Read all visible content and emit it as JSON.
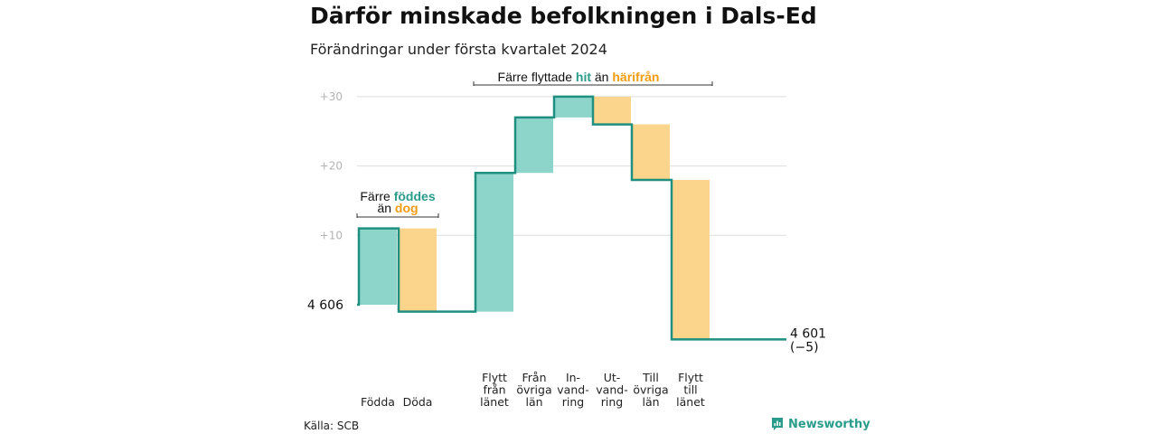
{
  "title": "Därför minskade befolkningen i Dals-Ed",
  "subtitle": "Förändringar under första kvartalet 2024",
  "source": "Källa: SCB",
  "brand": "Newsworthy",
  "colors": {
    "increase": "#8dd5cb",
    "decrease": "#fbd58c",
    "line": "#1f8f7f",
    "grid": "#dddddd",
    "teal_text": "#2a9c8b",
    "orange_text": "#f39c12"
  },
  "annotations": {
    "births_deaths": {
      "prefix": "Färre",
      "highlight1": "föddes",
      "middle": "än",
      "highlight2": "dog"
    },
    "migration": {
      "prefix": "Färre flyttade",
      "highlight1": "hit",
      "middle": "än",
      "highlight2": "härifrån"
    }
  },
  "chart_data": {
    "type": "waterfall",
    "start_label": "4 606",
    "end_label": "4 601",
    "end_change_label": "(−5)",
    "start_value": 4606,
    "end_value": 4601,
    "y_ticks": [
      "+10",
      "+20",
      "+30"
    ],
    "y_tick_values": [
      10,
      20,
      30
    ],
    "ylim": [
      -6,
      33
    ],
    "steps": [
      {
        "label": "Födda",
        "change": 11
      },
      {
        "label": "Döda",
        "change": -12
      },
      {
        "label": "Flytt från länet",
        "change": 20
      },
      {
        "label": "Från övriga län",
        "change": 8
      },
      {
        "label": "In- vand- ring",
        "change": 3
      },
      {
        "label": "Ut- vand- ring",
        "change": -4
      },
      {
        "label": "Till övriga län",
        "change": -8
      },
      {
        "label": "Flytt till länet",
        "change": -23
      }
    ],
    "category_lines": [
      [
        "Födda"
      ],
      [
        "Döda"
      ],
      [
        "Flytt",
        "från",
        "länet"
      ],
      [
        "Från",
        "övriga",
        "län"
      ],
      [
        "In-",
        "vand-",
        "ring"
      ],
      [
        "Ut-",
        "vand-",
        "ring"
      ],
      [
        "Till",
        "övriga",
        "län"
      ],
      [
        "Flytt",
        "till",
        "länet"
      ]
    ]
  }
}
